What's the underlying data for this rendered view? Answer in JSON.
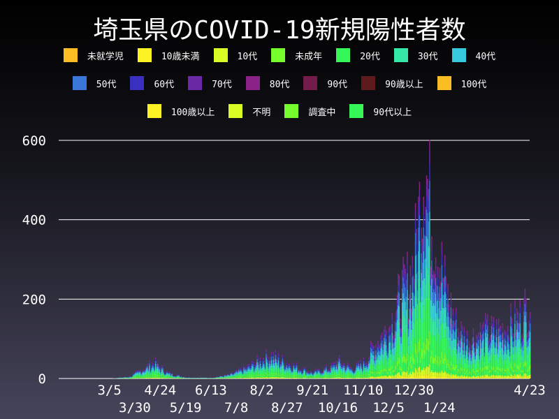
{
  "chart_data": {
    "type": "bar",
    "stacked": true,
    "title": "埼玉県のCOVID-19新規陽性者数",
    "xlabel": "",
    "ylabel": "",
    "ylim": [
      0,
      600
    ],
    "yticks": [
      0,
      200,
      400,
      600
    ],
    "xtick_labels": [
      "3/5",
      "3/30",
      "4/24",
      "5/19",
      "6/13",
      "7/8",
      "8/2",
      "8/27",
      "9/21",
      "10/16",
      "11/10",
      "12/5",
      "12/30",
      "1/24",
      "4/23"
    ],
    "xtick_dates": [
      "2020-03-05",
      "2020-03-30",
      "2020-04-24",
      "2020-05-19",
      "2020-06-13",
      "2020-07-08",
      "2020-08-02",
      "2020-08-27",
      "2020-09-21",
      "2020-10-16",
      "2020-11-10",
      "2020-12-05",
      "2020-12-30",
      "2021-01-24",
      "2021-04-23"
    ],
    "grid": true,
    "legend_position": "top",
    "legend": [
      {
        "name": "未就学児",
        "color": "#fbbd24"
      },
      {
        "name": "10歳未満",
        "color": "#fcf224"
      },
      {
        "name": "10代",
        "color": "#d8fc24"
      },
      {
        "name": "未成年",
        "color": "#74fc2c"
      },
      {
        "name": "20代",
        "color": "#35f858"
      },
      {
        "name": "30代",
        "color": "#36e8a8"
      },
      {
        "name": "40代",
        "color": "#36c8dc"
      },
      {
        "name": "50代",
        "color": "#3876d8"
      },
      {
        "name": "60代",
        "color": "#3a2fbe"
      },
      {
        "name": "70代",
        "color": "#6a2aa6"
      },
      {
        "name": "80代",
        "color": "#8a2388"
      },
      {
        "name": "90代",
        "color": "#721c4a"
      },
      {
        "name": "90歳以上",
        "color": "#5e1a1c"
      },
      {
        "name": "100代",
        "color": "#fbbd24"
      },
      {
        "name": "100歳以上",
        "color": "#fcf224"
      },
      {
        "name": "不明",
        "color": "#d8fc24"
      },
      {
        "name": "調査中",
        "color": "#74fc2c"
      },
      {
        "name": "90代以上",
        "color": "#35f858"
      }
    ],
    "x_start": "2020-01-15",
    "x_end": "2021-04-23",
    "total_series_approx": [
      [
        "2020-01-15",
        0
      ],
      [
        "2020-03-05",
        0
      ],
      [
        "2020-03-25",
        5
      ],
      [
        "2020-04-10",
        30
      ],
      [
        "2020-04-18",
        40
      ],
      [
        "2020-05-01",
        15
      ],
      [
        "2020-05-10",
        8
      ],
      [
        "2020-05-20",
        3
      ],
      [
        "2020-06-13",
        2
      ],
      [
        "2020-07-01",
        10
      ],
      [
        "2020-07-20",
        30
      ],
      [
        "2020-08-02",
        50
      ],
      [
        "2020-08-10",
        60
      ],
      [
        "2020-08-27",
        40
      ],
      [
        "2020-09-10",
        25
      ],
      [
        "2020-09-21",
        15
      ],
      [
        "2020-10-10",
        30
      ],
      [
        "2020-10-16",
        45
      ],
      [
        "2020-10-30",
        25
      ],
      [
        "2020-11-10",
        40
      ],
      [
        "2020-11-25",
        100
      ],
      [
        "2020-12-05",
        130
      ],
      [
        "2020-12-15",
        200
      ],
      [
        "2020-12-25",
        250
      ],
      [
        "2020-12-30",
        300
      ],
      [
        "2021-01-05",
        450
      ],
      [
        "2021-01-09",
        560
      ],
      [
        "2021-01-15",
        420
      ],
      [
        "2021-01-24",
        300
      ],
      [
        "2021-02-01",
        200
      ],
      [
        "2021-02-10",
        130
      ],
      [
        "2021-02-20",
        100
      ],
      [
        "2021-03-01",
        110
      ],
      [
        "2021-03-10",
        120
      ],
      [
        "2021-03-20",
        120
      ],
      [
        "2021-04-01",
        130
      ],
      [
        "2021-04-15",
        160
      ],
      [
        "2021-04-23",
        200
      ]
    ]
  }
}
